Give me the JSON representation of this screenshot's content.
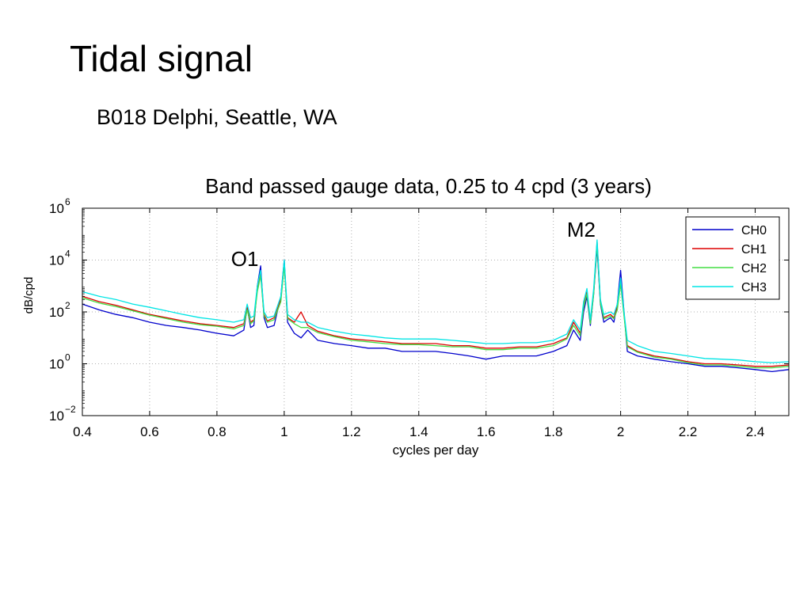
{
  "slide": {
    "title": "Tidal signal",
    "subtitle": "B018 Delphi, Seattle, WA"
  },
  "chart_data": {
    "type": "line",
    "title": "Band passed gauge data, 0.25 to 4 cpd (3 years)",
    "xlabel": "cycles per day",
    "ylabel": "dB/cpd",
    "xlim": [
      0.4,
      2.5
    ],
    "ylim": [
      0.01,
      1000000
    ],
    "yscale": "log",
    "grid": true,
    "legend_position": "top-right",
    "x_ticks": [
      0.4,
      0.6,
      0.8,
      1.0,
      1.2,
      1.4,
      1.6,
      1.8,
      2.0,
      2.2,
      2.4
    ],
    "x_tick_labels": [
      "0.4",
      "0.6",
      "0.8",
      "1",
      "1.2",
      "1.4",
      "1.6",
      "1.8",
      "2",
      "2.2",
      "2.4"
    ],
    "y_ticks": [
      0.01,
      1,
      100,
      10000,
      1000000
    ],
    "y_tick_labels": [
      {
        "base": "10",
        "exp": "−2"
      },
      {
        "base": "10",
        "exp": "0"
      },
      {
        "base": "10",
        "exp": "2"
      },
      {
        "base": "10",
        "exp": "4"
      },
      {
        "base": "10",
        "exp": "6"
      }
    ],
    "annotations": [
      {
        "text": "O1",
        "x": 0.93,
        "y": 6000
      },
      {
        "text": "M2",
        "x": 1.93,
        "y": 80000
      }
    ],
    "x": [
      0.4,
      0.45,
      0.5,
      0.55,
      0.6,
      0.65,
      0.7,
      0.75,
      0.8,
      0.85,
      0.88,
      0.89,
      0.9,
      0.91,
      0.92,
      0.93,
      0.94,
      0.95,
      0.97,
      0.99,
      1.0,
      1.01,
      1.03,
      1.05,
      1.07,
      1.1,
      1.15,
      1.2,
      1.25,
      1.3,
      1.35,
      1.4,
      1.45,
      1.5,
      1.55,
      1.6,
      1.65,
      1.7,
      1.75,
      1.8,
      1.84,
      1.86,
      1.88,
      1.89,
      1.9,
      1.91,
      1.92,
      1.93,
      1.94,
      1.95,
      1.96,
      1.97,
      1.98,
      1.99,
      2.0,
      2.01,
      2.02,
      2.05,
      2.1,
      2.15,
      2.2,
      2.25,
      2.3,
      2.35,
      2.4,
      2.45,
      2.5
    ],
    "series": [
      {
        "name": "CH0",
        "color": "#0000cc",
        "values": [
          200,
          120,
          80,
          60,
          40,
          30,
          25,
          20,
          15,
          12,
          20,
          150,
          25,
          30,
          1000,
          6000,
          60,
          25,
          30,
          400,
          10000,
          40,
          15,
          10,
          20,
          8,
          6,
          5,
          4,
          4,
          3,
          3,
          3,
          2.5,
          2,
          1.5,
          2,
          2,
          2,
          3,
          5,
          20,
          8,
          100,
          400,
          30,
          500,
          30000,
          200,
          40,
          50,
          60,
          40,
          200,
          4000,
          100,
          3,
          2,
          1.5,
          1.2,
          1,
          0.8,
          0.8,
          0.7,
          0.6,
          0.5,
          0.6
        ]
      },
      {
        "name": "CH1",
        "color": "#dd0000",
        "values": [
          400,
          250,
          180,
          120,
          80,
          60,
          45,
          35,
          30,
          25,
          35,
          150,
          40,
          50,
          800,
          3000,
          80,
          45,
          60,
          300,
          8000,
          60,
          40,
          100,
          30,
          18,
          12,
          9,
          8,
          7,
          6,
          6,
          6,
          5,
          5,
          4,
          4,
          4.5,
          4.5,
          6,
          10,
          40,
          15,
          200,
          600,
          40,
          600,
          50000,
          250,
          60,
          70,
          80,
          60,
          150,
          1500,
          80,
          5,
          3,
          2,
          1.6,
          1.2,
          1,
          1,
          0.9,
          0.8,
          0.8,
          0.9
        ]
      },
      {
        "name": "CH2",
        "color": "#44dd44",
        "values": [
          350,
          220,
          160,
          110,
          75,
          55,
          40,
          32,
          28,
          22,
          30,
          120,
          35,
          45,
          600,
          2500,
          70,
          40,
          50,
          250,
          6000,
          55,
          35,
          25,
          25,
          16,
          11,
          8,
          7,
          6,
          5.5,
          5.5,
          5,
          4.5,
          4.5,
          3.5,
          3.5,
          4,
          4,
          5,
          9,
          30,
          12,
          150,
          500,
          35,
          500,
          40000,
          220,
          55,
          60,
          70,
          55,
          120,
          1200,
          70,
          4.5,
          2.8,
          1.8,
          1.5,
          1.1,
          0.9,
          0.9,
          0.8,
          0.7,
          0.7,
          0.8
        ]
      },
      {
        "name": "CH3",
        "color": "#00e5e5",
        "values": [
          600,
          400,
          300,
          200,
          150,
          110,
          80,
          60,
          50,
          40,
          50,
          200,
          60,
          70,
          1000,
          4000,
          100,
          60,
          70,
          400,
          10000,
          80,
          50,
          40,
          40,
          25,
          18,
          14,
          12,
          10,
          9,
          9,
          9,
          8,
          7,
          6,
          6,
          6.5,
          6.5,
          8,
          14,
          50,
          20,
          250,
          800,
          50,
          800,
          60000,
          300,
          80,
          90,
          100,
          80,
          200,
          2000,
          100,
          8,
          5,
          3,
          2.5,
          2,
          1.6,
          1.5,
          1.4,
          1.2,
          1.1,
          1.2
        ]
      }
    ]
  }
}
